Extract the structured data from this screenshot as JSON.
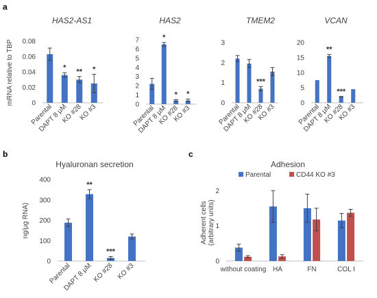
{
  "panels": {
    "a": "a",
    "b": "b",
    "c": "c"
  },
  "colors": {
    "bar": "#4472C4",
    "bar2": "#C0504D",
    "error": "#404040",
    "axis": "#bfbfbf"
  },
  "chart_data": [
    {
      "id": "a1",
      "type": "bar",
      "title": "HAS2-AS1",
      "title_italic": true,
      "ylabel": "mRNA relative to TBP",
      "categories": [
        "Parental",
        "DAPT 8 μM",
        "KO #28",
        "KO #3"
      ],
      "values": [
        0.063,
        0.036,
        0.03,
        0.025
      ],
      "errors": [
        0.008,
        0.003,
        0.004,
        0.012
      ],
      "significance": [
        "",
        "*",
        "**",
        "*"
      ],
      "ylim": [
        0,
        0.08
      ],
      "yticks": [
        0,
        0.02,
        0.04,
        0.06,
        0.08
      ],
      "yticklabels": [
        "0",
        "0.02",
        "0.04",
        "0.06",
        "0.08"
      ]
    },
    {
      "id": "a2",
      "type": "bar",
      "title": "HAS2",
      "title_italic": true,
      "categories": [
        "Parental",
        "DAPT 8 μM",
        "KO #28",
        "KO #3"
      ],
      "values": [
        2.2,
        6.5,
        0.4,
        0.4
      ],
      "errors": [
        0.6,
        0.2,
        0.1,
        0.15
      ],
      "significance": [
        "",
        "*",
        "*",
        "*"
      ],
      "ylim": [
        0,
        7
      ],
      "yticks": [
        0,
        1,
        2,
        3,
        4,
        5,
        6,
        7
      ],
      "yticklabels": [
        "0",
        "1",
        "2",
        "3",
        "4",
        "5",
        "6",
        "7"
      ]
    },
    {
      "id": "a3",
      "type": "bar",
      "title": "TMEM2",
      "title_italic": true,
      "categories": [
        "Parental",
        "DAPT 8 μM",
        "KO #28",
        "KO #3"
      ],
      "values": [
        2.2,
        1.95,
        0.7,
        1.55
      ],
      "errors": [
        0.15,
        0.2,
        0.1,
        0.2
      ],
      "significance": [
        "",
        "",
        "***",
        ""
      ],
      "ylim": [
        0,
        3
      ],
      "yticks": [
        0,
        1,
        2,
        3
      ],
      "yticklabels": [
        "0",
        "1",
        "2",
        "3"
      ]
    },
    {
      "id": "a4",
      "type": "bar",
      "title": "VCAN",
      "title_italic": true,
      "categories": [
        "Parental",
        "DAPT 8 μM",
        "KO #28",
        "KO #3"
      ],
      "values": [
        7.5,
        15.5,
        2.0,
        4.5
      ],
      "errors": [
        0,
        0.5,
        0.1,
        0
      ],
      "significance": [
        "",
        "**",
        "***",
        ""
      ],
      "ylim": [
        0,
        20
      ],
      "yticks": [
        0,
        5,
        10,
        15,
        20
      ],
      "yticklabels": [
        "0",
        "5",
        "10",
        "15",
        "20"
      ]
    },
    {
      "id": "b",
      "type": "bar",
      "title": "Hyaluronan secretion",
      "title_italic": false,
      "ylabel": "ng/μg RNA)",
      "categories": [
        "Parental",
        "DAPT 8 μM",
        "KO #28",
        "KO #3"
      ],
      "values": [
        188,
        328,
        15,
        120
      ],
      "errors": [
        18,
        22,
        7,
        12
      ],
      "significance": [
        "",
        "**",
        "***",
        ""
      ],
      "ylim": [
        0,
        400
      ],
      "yticks": [
        0,
        100,
        200,
        300,
        400
      ],
      "yticklabels": [
        "0",
        "100",
        "200",
        "300",
        "400"
      ]
    },
    {
      "id": "c",
      "type": "bar",
      "title": "Adhesion",
      "title_italic": false,
      "ylabel": "Adherent cells (arbitrary units)",
      "ylabel_lines": [
        "Adherent cells",
        "(arbitrary units)"
      ],
      "categories": [
        "without coating",
        "HA",
        "FN",
        "COL I"
      ],
      "series": [
        {
          "name": "Parental",
          "values": [
            0.38,
            1.55,
            1.5,
            1.15
          ],
          "errors": [
            0.1,
            0.45,
            0.4,
            0.2
          ]
        },
        {
          "name": "CD44 KO #3",
          "values": [
            0.12,
            0.13,
            1.18,
            1.37
          ],
          "errors": [
            0.03,
            0.05,
            0.32,
            0.1
          ]
        }
      ],
      "legend": "top",
      "ylim": [
        0,
        2.2
      ],
      "yticks": [
        0,
        1,
        2
      ],
      "yticklabels": [
        "0",
        "1",
        "2"
      ]
    }
  ]
}
